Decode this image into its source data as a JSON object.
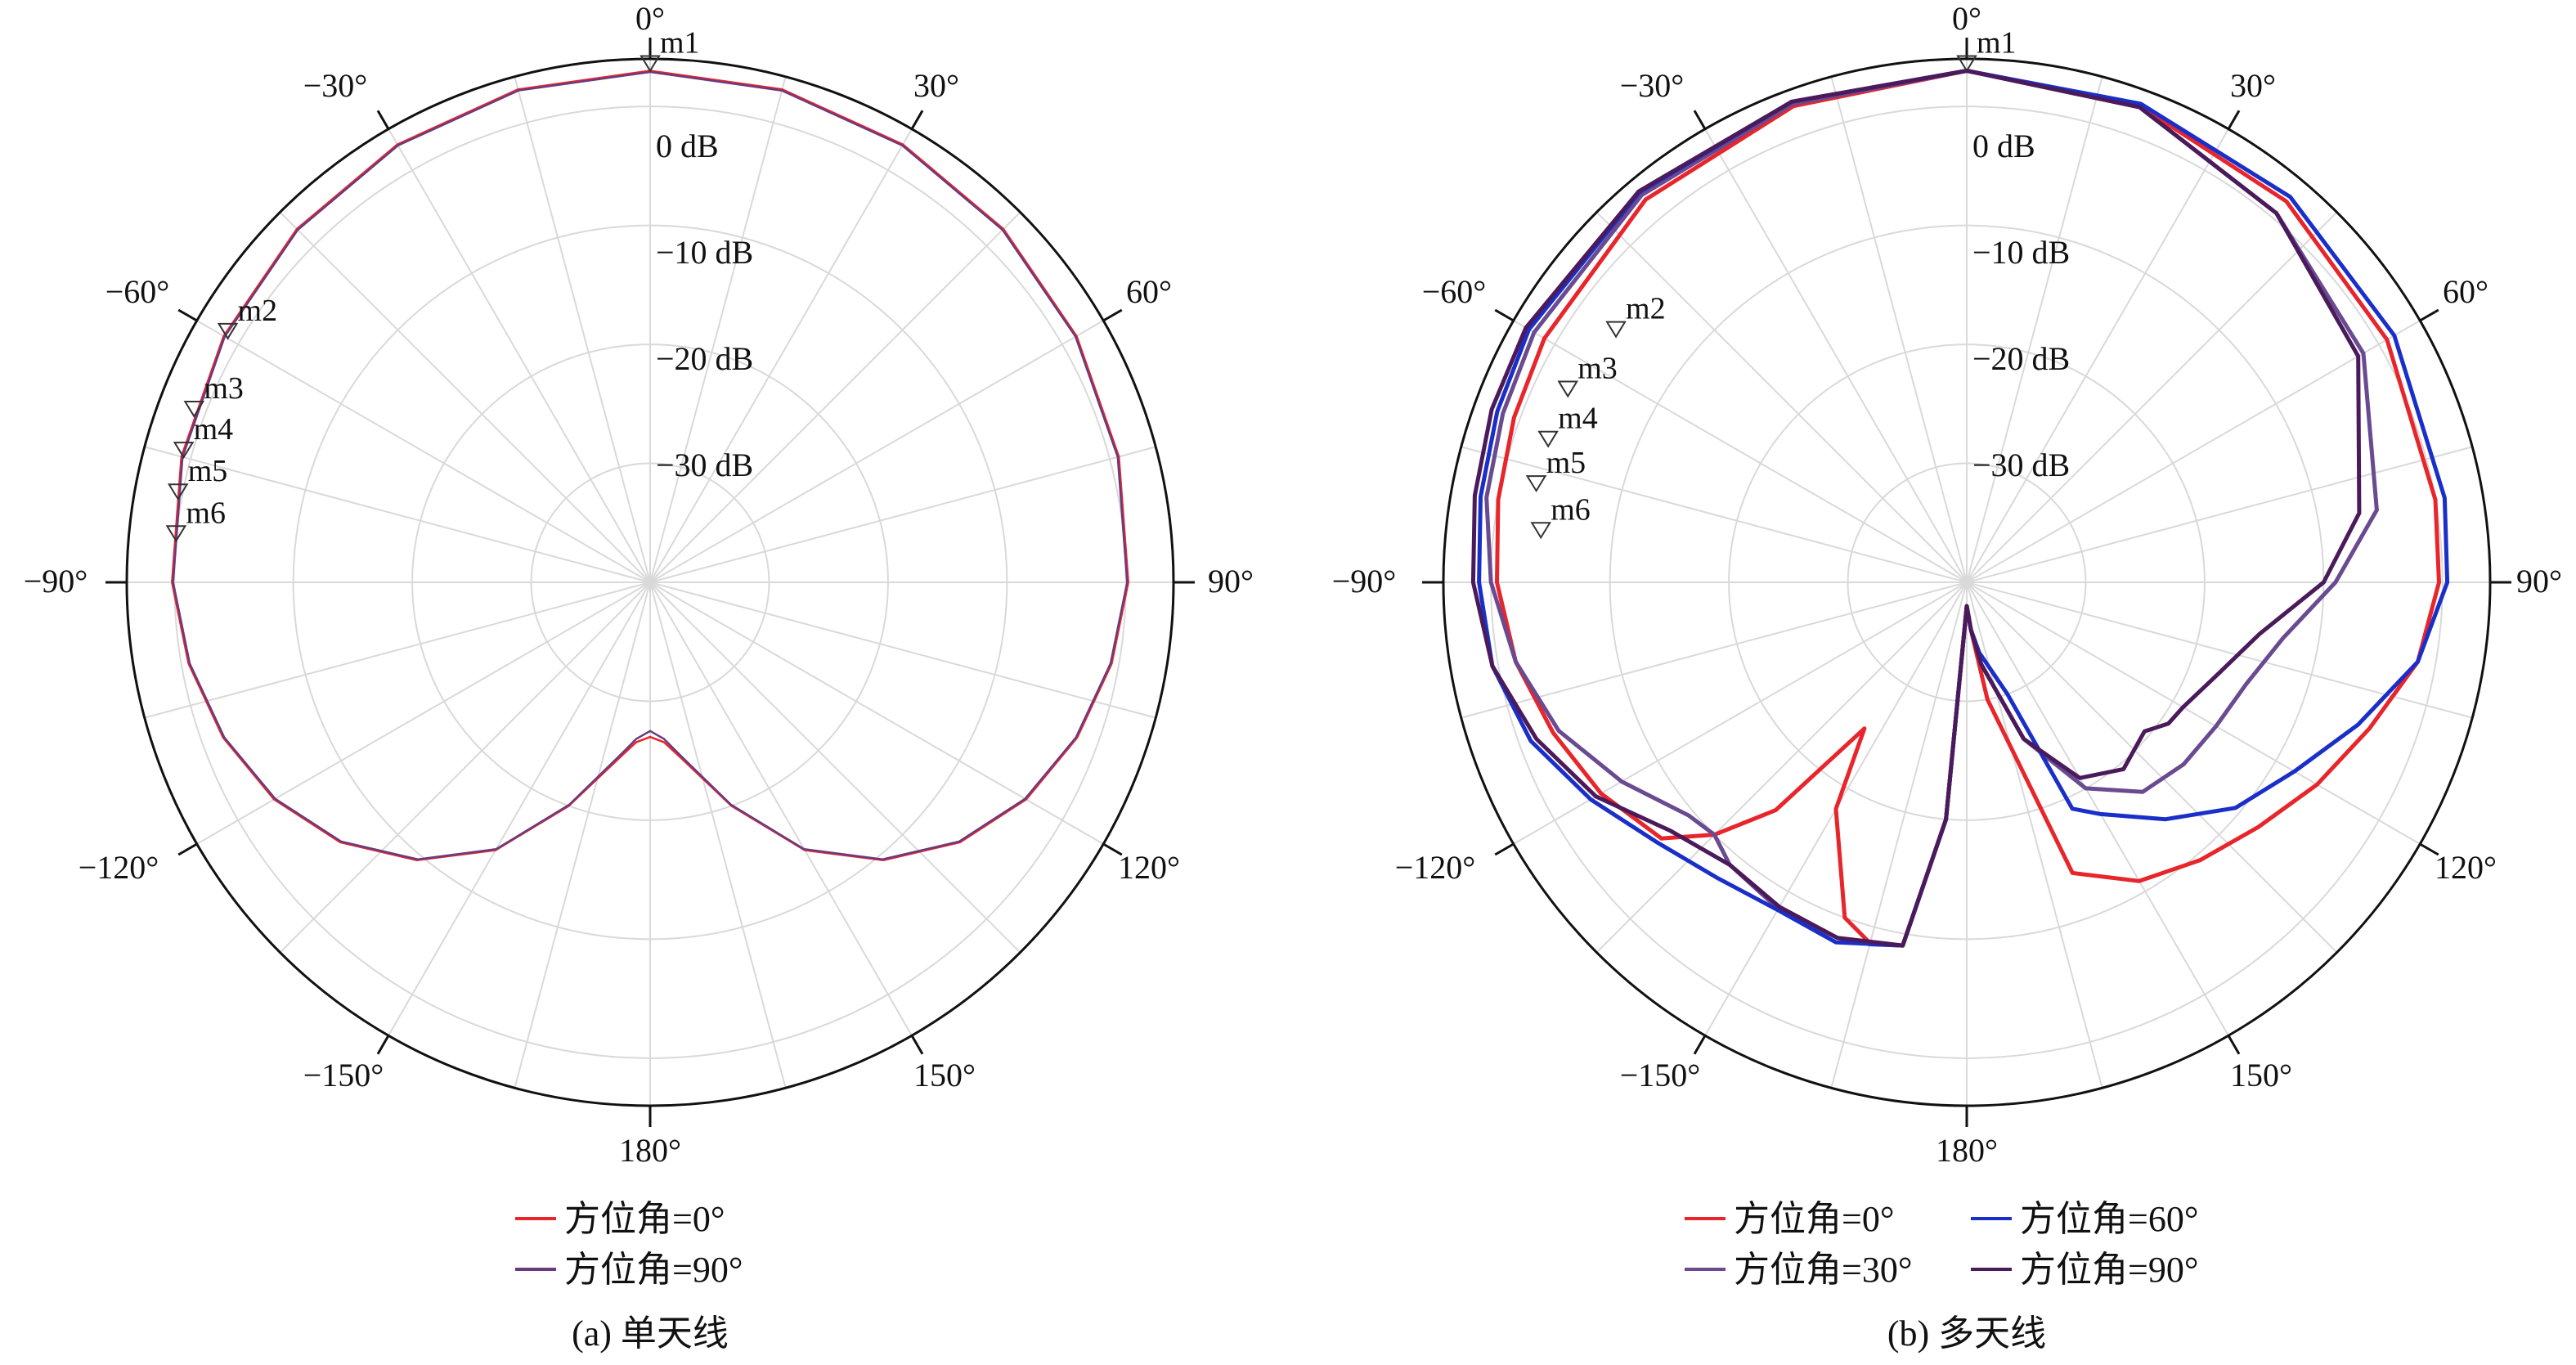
{
  "chart_data": [
    {
      "type": "polar-line",
      "caption": "(a) 单天线",
      "angle_labels": [
        "0°",
        "30°",
        "60°",
        "90°",
        "120°",
        "150°",
        "180°",
        "−150°",
        "−120°",
        "−90°",
        "−60°",
        "−30°"
      ],
      "radial_labels": [
        "0 dB",
        "−10 dB",
        "−20 dB",
        "−30 dB"
      ],
      "radial_range_db": [
        -40,
        4
      ],
      "grid": true,
      "legend_position": "bottom",
      "markers": [
        {
          "name": "m1",
          "angle_deg": 0,
          "value_db": 3
        },
        {
          "name": "m2",
          "angle_deg": -60,
          "value_db": 1
        },
        {
          "name": "m3",
          "angle_deg": -70,
          "value_db": 0.8
        },
        {
          "name": "m4",
          "angle_deg": -75,
          "value_db": 0.6
        },
        {
          "name": "m5",
          "angle_deg": -80,
          "value_db": 0.3
        },
        {
          "name": "m6",
          "angle_deg": -85,
          "value_db": 0
        }
      ],
      "series": [
        {
          "name": "方位角=0°",
          "color": "#e8252b",
          "theta_deg": [
            0,
            15,
            30,
            45,
            60,
            75,
            90,
            100,
            110,
            120,
            130,
            140,
            150,
            160,
            170,
            175,
            180,
            185,
            190,
            200,
            210,
            220,
            230,
            240,
            250,
            260,
            270,
            285,
            300,
            315,
            330,
            345,
            360
          ],
          "gain_db": [
            3,
            2.9,
            2.5,
            2.0,
            1.4,
            0.8,
            0.2,
            -0.6,
            -1.8,
            -3.5,
            -6,
            -9.5,
            -14,
            -20,
            -25,
            -26.5,
            -27,
            -26.5,
            -25,
            -20,
            -14,
            -9.5,
            -6,
            -3.5,
            -1.8,
            -0.6,
            0.2,
            0.8,
            1.4,
            2.0,
            2.5,
            2.9,
            3
          ]
        },
        {
          "name": "方位角=90°",
          "color": "#6a3a7e",
          "theta_deg": [
            0,
            15,
            30,
            45,
            60,
            75,
            90,
            100,
            110,
            120,
            130,
            140,
            150,
            160,
            170,
            175,
            180,
            185,
            190,
            200,
            210,
            220,
            230,
            240,
            250,
            260,
            270,
            285,
            300,
            315,
            330,
            345,
            360
          ],
          "gain_db": [
            2.9,
            2.8,
            2.4,
            1.9,
            1.3,
            0.7,
            0.1,
            -0.7,
            -1.9,
            -3.6,
            -6.1,
            -9.6,
            -14.1,
            -20.1,
            -25.2,
            -26.8,
            -27.5,
            -26.8,
            -25.2,
            -20.1,
            -14.1,
            -9.6,
            -6.1,
            -3.6,
            -1.9,
            -0.7,
            0.1,
            0.7,
            1.3,
            1.9,
            2.4,
            2.8,
            2.9
          ]
        }
      ]
    },
    {
      "type": "polar-line",
      "caption": "(b) 多天线",
      "angle_labels": [
        "0°",
        "30°",
        "60°",
        "90°",
        "120°",
        "150°",
        "180°",
        "−150°",
        "−120°",
        "−90°",
        "−60°",
        "−30°"
      ],
      "radial_labels": [
        "0 dB",
        "−10 dB",
        "−20 dB",
        "−30 dB"
      ],
      "radial_range_db": [
        -40,
        4
      ],
      "grid": true,
      "legend_position": "bottom",
      "markers": [
        {
          "name": "m1",
          "angle_deg": 0,
          "value_db": 3
        },
        {
          "name": "m2",
          "angle_deg": -55,
          "value_db": -4
        },
        {
          "name": "m3",
          "angle_deg": -65,
          "value_db": -3
        },
        {
          "name": "m4",
          "angle_deg": -72,
          "value_db": -3
        },
        {
          "name": "m5",
          "angle_deg": -78,
          "value_db": -3
        },
        {
          "name": "m6",
          "angle_deg": -84,
          "value_db": -4
        }
      ],
      "series": [
        {
          "name": "方位角=0°",
          "color": "#e8252b",
          "theta_deg": [
            0,
            20,
            40,
            60,
            80,
            90,
            100,
            110,
            120,
            130,
            140,
            150,
            160,
            170,
            175,
            180,
            185,
            190,
            195,
            200,
            210,
            215,
            220,
            225,
            230,
            240,
            250,
            260,
            270,
            280,
            290,
            300,
            320,
            340,
            360
          ],
          "gain_db": [
            3,
            2.6,
            1.8,
            0.8,
            0,
            -0.3,
            -1.5,
            -4,
            -6,
            -8,
            -9.5,
            -11,
            -14,
            -30,
            -36,
            -38,
            -20,
            -9,
            -8.6,
            -10,
            -18,
            -25,
            -15,
            -10,
            -6.5,
            -4.5,
            -3,
            -1.5,
            -0.5,
            0,
            0.5,
            1,
            2,
            2.6,
            3
          ]
        },
        {
          "name": "方位角=30°",
          "color": "#6a4a90",
          "theta_deg": [
            0,
            20,
            40,
            60,
            80,
            90,
            100,
            110,
            120,
            130,
            140,
            150,
            160,
            170,
            175,
            180,
            185,
            190,
            195,
            200,
            210,
            220,
            225,
            230,
            240,
            250,
            260,
            270,
            280,
            290,
            300,
            320,
            340,
            360
          ],
          "gain_db": [
            3,
            2.5,
            0.5,
            -1.5,
            -5,
            -9,
            -13,
            -15,
            -15.8,
            -16.2,
            -17,
            -20,
            -26,
            -33,
            -36,
            -38,
            -20,
            -9,
            -8.5,
            -8.2,
            -8.3,
            -9,
            -10,
            -9.5,
            -6.5,
            -3.5,
            -1.5,
            0,
            1,
            1.5,
            2,
            2.5,
            2.8,
            3
          ]
        },
        {
          "name": "方位角=60°",
          "color": "#1a2fc8",
          "theta_deg": [
            0,
            20,
            40,
            60,
            80,
            90,
            100,
            110,
            120,
            130,
            140,
            150,
            155,
            160,
            170,
            175,
            180,
            185,
            190,
            200,
            210,
            220,
            230,
            240,
            250,
            260,
            270,
            280,
            290,
            300,
            320,
            340,
            360
          ],
          "gain_db": [
            3,
            2.8,
            2.3,
            1.5,
            0.8,
            0.4,
            -1.5,
            -5,
            -8.2,
            -10.5,
            -14,
            -17.5,
            -19,
            -30,
            -34,
            -36,
            -38,
            -20,
            -9,
            -7.8,
            -8.2,
            -7.5,
            -6,
            -3.5,
            -1,
            0.5,
            1,
            1.5,
            2,
            2.5,
            2.8,
            3,
            3
          ]
        },
        {
          "name": "方位角=90°",
          "color": "#4a1a5a",
          "theta_deg": [
            0,
            20,
            40,
            60,
            80,
            90,
            100,
            110,
            120,
            125,
            130,
            140,
            150,
            160,
            170,
            175,
            180,
            185,
            190,
            200,
            210,
            220,
            230,
            240,
            250,
            260,
            270,
            280,
            290,
            300,
            320,
            340,
            360
          ],
          "gain_db": [
            3,
            2.5,
            0.5,
            -2,
            -6.5,
            -10,
            -15,
            -17.5,
            -19,
            -19.3,
            -20.5,
            -19.5,
            -21,
            -26,
            -33,
            -36,
            -38,
            -20,
            -9,
            -8.2,
            -8.5,
            -9,
            -7.5,
            -4,
            -1.5,
            0.5,
            1.5,
            2,
            2.5,
            2.8,
            2.9,
            3,
            3
          ]
        }
      ]
    }
  ]
}
